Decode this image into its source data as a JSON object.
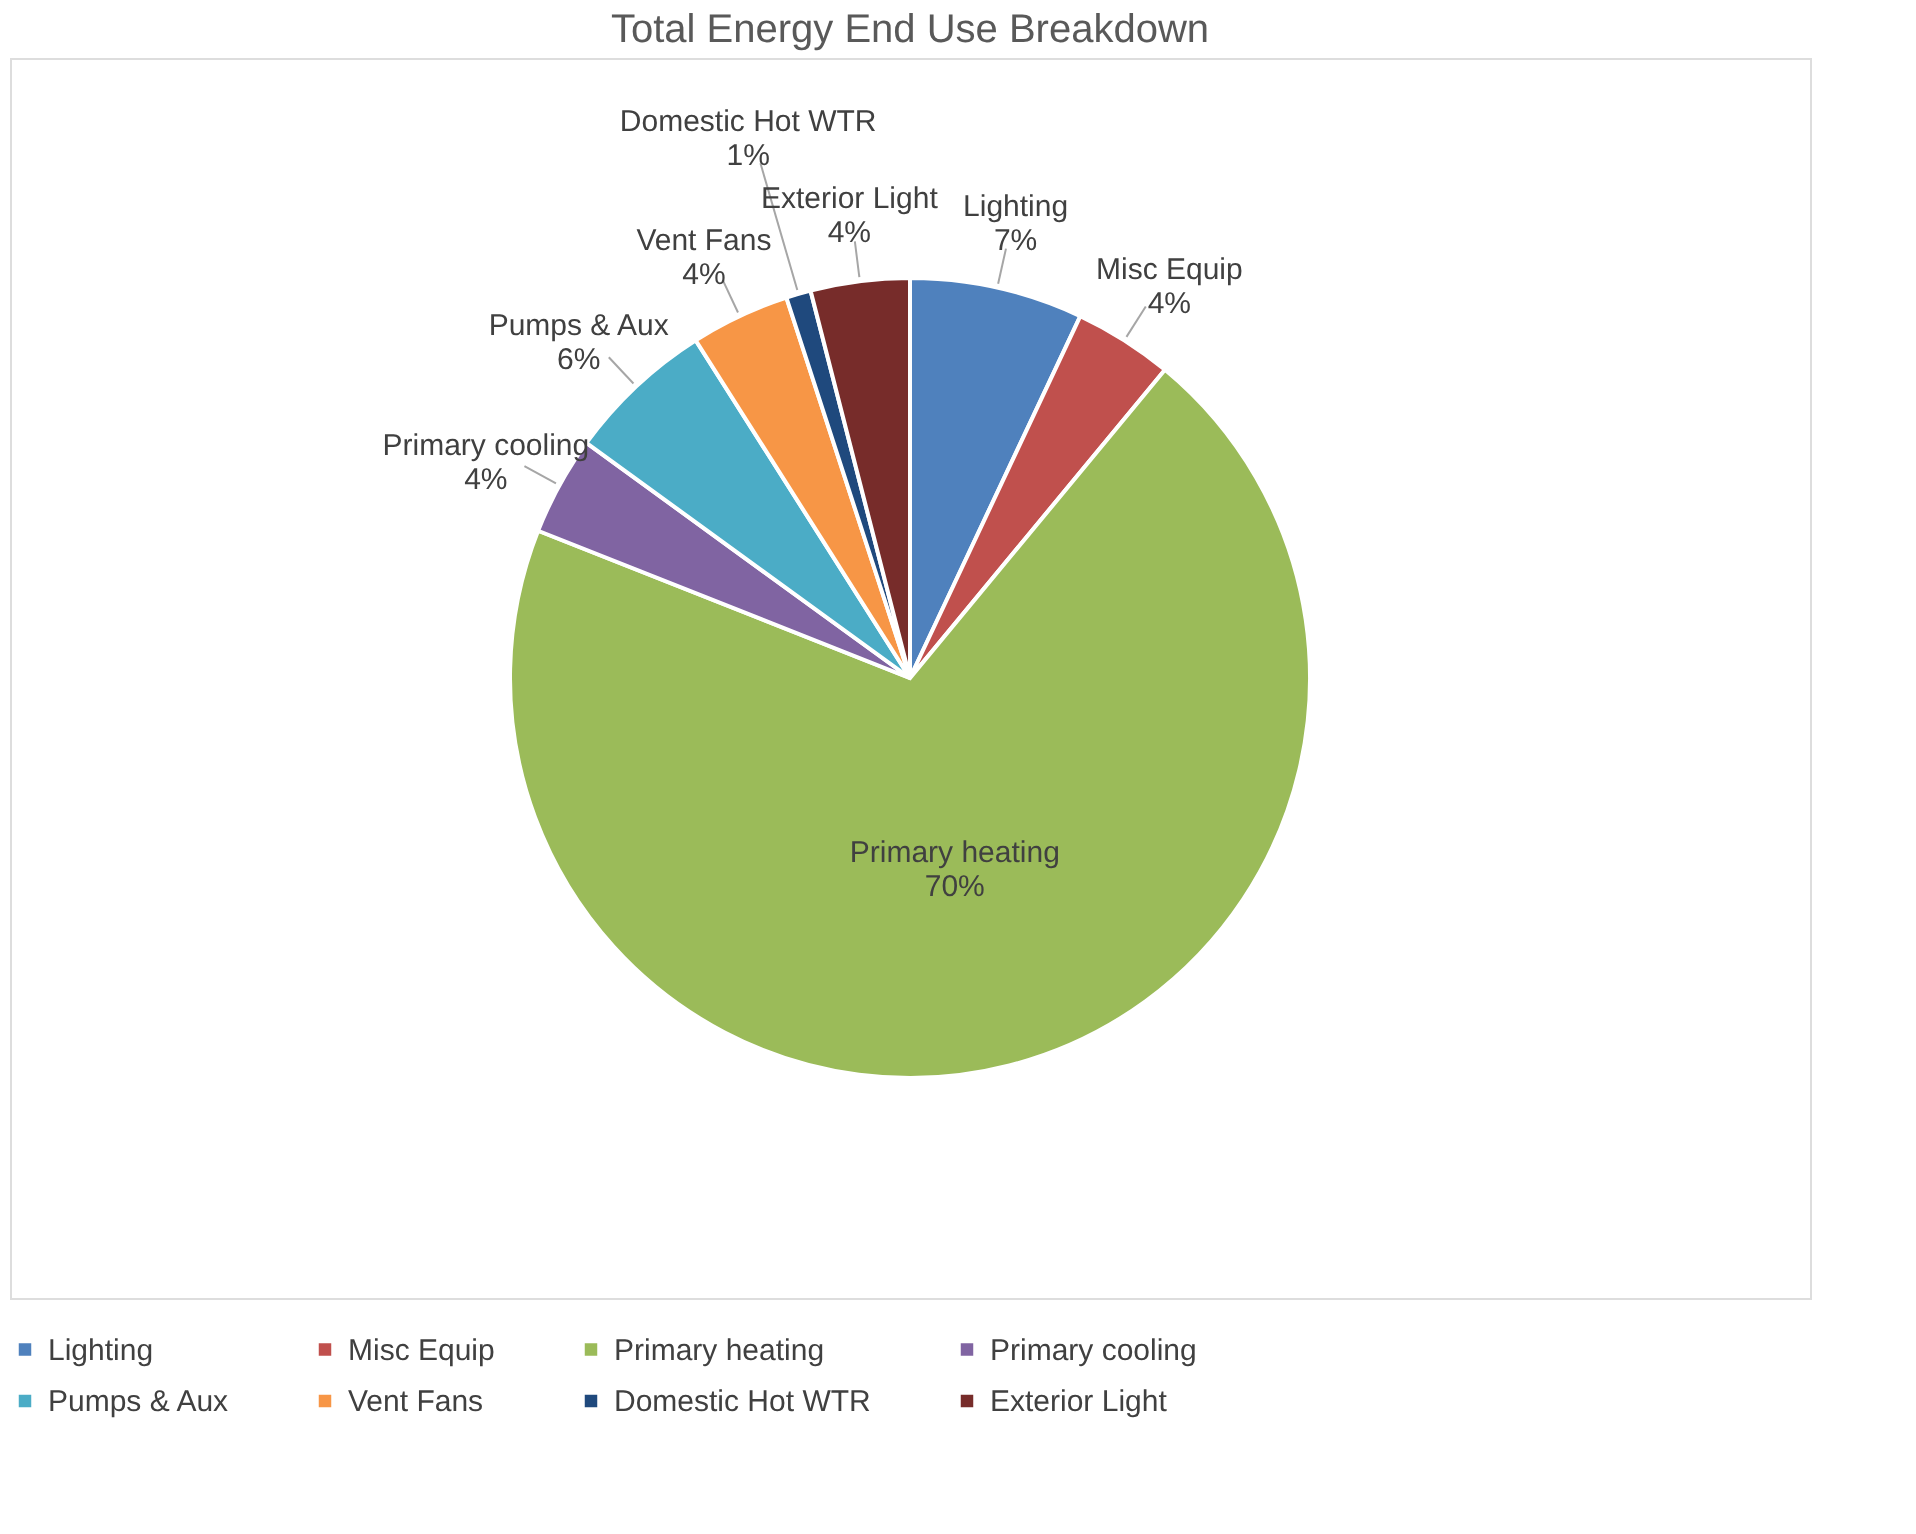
{
  "chart_data": {
    "type": "pie",
    "title": "Total Energy End Use Breakdown",
    "categories": [
      "Lighting",
      "Misc Equip",
      "Primary heating",
      "Primary cooling",
      "Pumps & Aux",
      "Vent Fans",
      "Domestic Hot WTR",
      "Exterior Light"
    ],
    "values": [
      7,
      4,
      70,
      4,
      6,
      4,
      1,
      4
    ],
    "value_labels": [
      "7%",
      "4%",
      "70%",
      "4%",
      "6%",
      "4%",
      "1%",
      "4%"
    ],
    "colors": [
      "#4f81bd",
      "#c0504d",
      "#9bbb59",
      "#8064a2",
      "#4bacc6",
      "#f79646",
      "#1f497d",
      "#772c2a"
    ],
    "legend": "bottom"
  }
}
